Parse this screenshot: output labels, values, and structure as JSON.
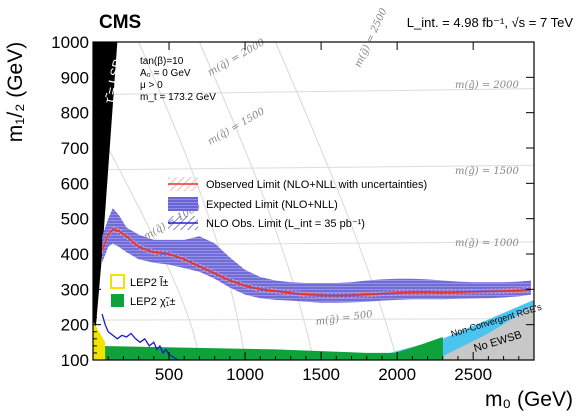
{
  "chart_data": {
    "type": "line",
    "experiment_label": "CMS",
    "luminosity_label": "L_int. = 4.98 fb⁻¹, √s = 7 TeV",
    "xlabel": "m₀ (GeV)",
    "ylabel": "m₁/₂ (GeV)",
    "xlim": [
      0,
      2900
    ],
    "ylim": [
      100,
      1000
    ],
    "xticks": [
      500,
      1000,
      1500,
      2000,
      2500
    ],
    "yticks": [
      100,
      200,
      300,
      400,
      500,
      600,
      700,
      800,
      900,
      1000
    ],
    "grid": false,
    "parameters": [
      "tan(β)=10",
      "A₀ = 0 GeV",
      "μ > 0",
      "m_t = 173.2 GeV"
    ],
    "regions": {
      "stau_lsp": "τ̃ = LSP",
      "non_convergent": "Non-Convergent RGE's",
      "no_ewsb": "No EWSB"
    },
    "legend": {
      "placement": "center",
      "entries": [
        {
          "label": "Observed Limit (NLO+NLL with uncertainties)",
          "color": "#e8332f"
        },
        {
          "label": "Expected Limit (NLO+NLL)",
          "color": "#5a55cc"
        },
        {
          "label": "NLO Obs. Limit (L_int = 35 pb⁻¹)",
          "color": "#2222cc"
        }
      ]
    },
    "lep_legend": [
      {
        "label": "LEP2 l̃±",
        "color": "#f2e200"
      },
      {
        "label": "LEP2 χ̃₁±",
        "color": "#0ea23a"
      }
    ],
    "contour_labels": {
      "squark": [
        "m(q̃) = 2000",
        "m(q̃) = 1500",
        "m(q̃) = 1000"
      ],
      "gluino": [
        "m(g̃) = 2500",
        "m(g̃) = 2000",
        "m(g̃) = 1500",
        "m(g̃) = 1000",
        "m(g̃) = 500"
      ]
    },
    "series": [
      {
        "name": "Observed Limit (NLO+NLL with uncertainties)",
        "x": [
          60,
          100,
          130,
          170,
          220,
          300,
          400,
          500,
          600,
          700,
          800,
          900,
          1000,
          1100,
          1200,
          1300,
          1400,
          1500,
          1600,
          1700,
          1800,
          1900,
          2000,
          2100,
          2200,
          2300,
          2400,
          2500,
          2600,
          2700,
          2800,
          2880
        ],
        "y": [
          410,
          455,
          470,
          465,
          450,
          420,
          405,
          400,
          385,
          365,
          345,
          325,
          310,
          300,
          295,
          290,
          285,
          283,
          282,
          283,
          285,
          288,
          290,
          292,
          292,
          291,
          292,
          293,
          294,
          295,
          297,
          300
        ]
      },
      {
        "name": "Expected Limit (NLO+NLL)",
        "x": [
          60,
          100,
          130,
          170,
          220,
          300,
          400,
          500,
          600,
          700,
          800,
          900,
          1000,
          1100,
          1200,
          1300,
          1400,
          1500,
          1600,
          1700,
          1800,
          1900,
          2000,
          2100,
          2200,
          2300,
          2400,
          2500,
          2600,
          2700,
          2800,
          2880
        ],
        "y_low": [
          375,
          420,
          430,
          420,
          405,
          385,
          375,
          370,
          360,
          350,
          330,
          305,
          285,
          275,
          270,
          268,
          265,
          262,
          262,
          263,
          265,
          268,
          270,
          272,
          272,
          272,
          273,
          274,
          275,
          277,
          280,
          285
        ],
        "y_high": [
          450,
          500,
          530,
          510,
          475,
          455,
          440,
          440,
          440,
          450,
          430,
          390,
          355,
          335,
          325,
          320,
          318,
          318,
          318,
          320,
          325,
          328,
          330,
          330,
          328,
          325,
          322,
          320,
          320,
          320,
          322,
          325
        ]
      },
      {
        "name": "NLO Obs. Limit (L_int = 35 pb⁻¹)",
        "x": [
          60,
          80,
          100,
          130,
          160,
          190,
          220,
          250,
          280,
          310,
          340,
          370,
          400,
          420,
          440,
          460,
          480,
          500,
          520,
          540,
          560,
          580,
          600
        ],
        "y": [
          230,
          200,
          180,
          170,
          160,
          170,
          165,
          175,
          160,
          150,
          160,
          140,
          150,
          130,
          140,
          120,
          130,
          115,
          110,
          105,
          100,
          95,
          90
        ]
      }
    ],
    "excluded_regions": {
      "lep_chargino_top": 140,
      "lep_slepton_xmax": 80
    }
  }
}
